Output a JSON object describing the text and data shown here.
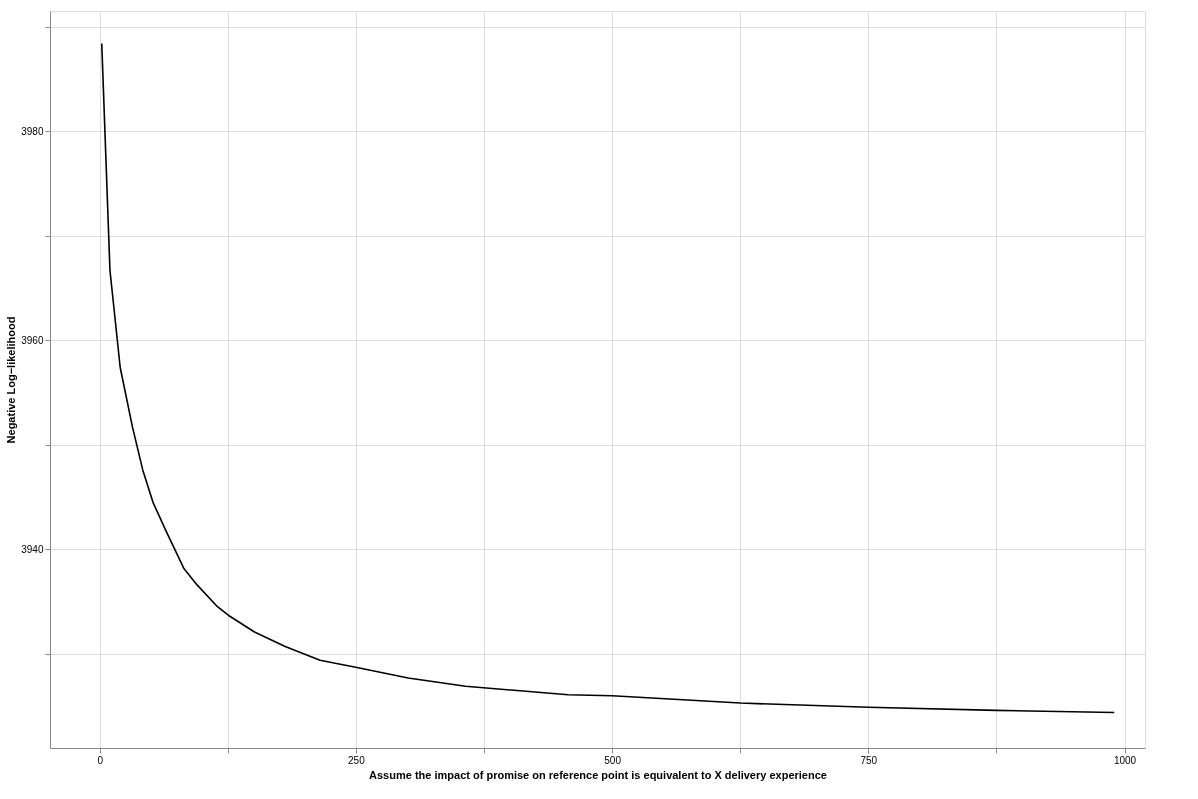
{
  "chart_data": {
    "type": "line",
    "xlabel": "Assume the impact of promise on reference point is equivalent to X delivery experience",
    "ylabel": "Negative Log−likelihood",
    "x": [
      2,
      10,
      20,
      32,
      42,
      52,
      65,
      82,
      95,
      114,
      127,
      151,
      181,
      215,
      251,
      301,
      357,
      457,
      500,
      625,
      750,
      875,
      990
    ],
    "series": [
      {
        "color": "#000000",
        "values": [
          3988.4,
          3966.7,
          3957.4,
          3951.7,
          3947.6,
          3944.5,
          3941.7,
          3938.2,
          3936.6,
          3934.6,
          3933.6,
          3932.1,
          3930.7,
          3929.4,
          3928.7,
          3927.7,
          3926.9,
          3926.1,
          3926.0,
          3925.3,
          3924.9,
          3924.6,
          3924.4
        ]
      }
    ],
    "xlim": [
      -48.5,
      1020
    ],
    "ylim": [
      3921,
      3991.5
    ],
    "xticks": [
      0,
      {
        "value": 125,
        "label": null
      },
      250,
      {
        "value": 375,
        "label": null
      },
      500,
      {
        "value": 625,
        "label": null
      },
      750,
      {
        "value": 875,
        "label": null
      },
      1000
    ],
    "yticks": [
      {
        "value": 3930,
        "label": null
      },
      3940,
      {
        "value": 3950,
        "label": null
      },
      3960,
      {
        "value": 3970,
        "label": null
      },
      3980,
      {
        "value": 3990,
        "label": null
      }
    ],
    "grid": true,
    "legend": false,
    "marker": "none",
    "line_style": "solid"
  }
}
